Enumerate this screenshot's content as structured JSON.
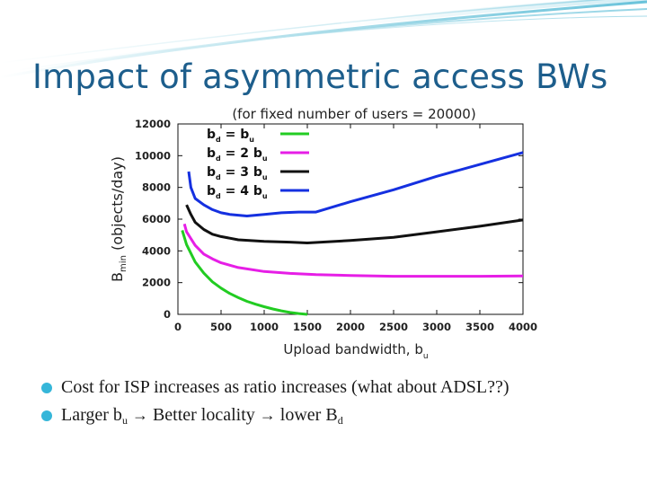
{
  "slide": {
    "title": "Impact of asymmetric access BWs",
    "accent_color": "#1d5e8c",
    "bullet_color": "#35b6d9",
    "bullets": [
      {
        "text": "Cost for ISP increases as ratio increases (what about ADSL??)"
      },
      {
        "parts": [
          "Larger b",
          "u",
          " ",
          "→",
          " Better locality ",
          "→",
          " lower B",
          "d"
        ]
      }
    ]
  },
  "chart_data": {
    "type": "line",
    "title": "(for fixed number of users = 20000)",
    "xlabel": "Upload bandwidth, b",
    "xlabel_sub": "u",
    "ylabel": "B",
    "ylabel_sub": "min",
    "ylabel_rest": " (objects/day)",
    "xlim": [
      0,
      4000
    ],
    "ylim": [
      0,
      12000
    ],
    "xticks": [
      0,
      500,
      1000,
      1500,
      2000,
      2500,
      3000,
      3500,
      4000
    ],
    "yticks": [
      0,
      2000,
      4000,
      6000,
      8000,
      10000,
      12000
    ],
    "legend_position": "top-left",
    "series": [
      {
        "name": "b_d = b_u",
        "legend": [
          "b",
          "d",
          " = b",
          "u"
        ],
        "color": "#22cc22",
        "x": [
          50,
          100,
          200,
          300,
          400,
          500,
          600,
          700,
          800,
          900,
          1000,
          1100,
          1200,
          1300,
          1400,
          1500
        ],
        "y": [
          5300,
          4400,
          3300,
          2600,
          2050,
          1650,
          1320,
          1050,
          820,
          640,
          480,
          340,
          220,
          120,
          50,
          0
        ]
      },
      {
        "name": "b_d = 2 b_u",
        "legend": [
          "b",
          "d",
          " = 2 b",
          "u"
        ],
        "color": "#e61ee6",
        "x": [
          75,
          100,
          200,
          300,
          400,
          500,
          700,
          1000,
          1300,
          1600,
          2000,
          2500,
          3000,
          3500,
          4000
        ],
        "y": [
          5700,
          5200,
          4350,
          3800,
          3500,
          3250,
          2950,
          2700,
          2580,
          2500,
          2450,
          2400,
          2400,
          2400,
          2420
        ]
      },
      {
        "name": "b_d = 3 b_u",
        "legend": [
          "b",
          "d",
          " = 3 b",
          "u"
        ],
        "color": "#111111",
        "x": [
          100,
          150,
          200,
          300,
          400,
          500,
          700,
          1000,
          1300,
          1500,
          2000,
          2500,
          3000,
          3500,
          4000
        ],
        "y": [
          6900,
          6300,
          5800,
          5350,
          5050,
          4900,
          4700,
          4600,
          4550,
          4500,
          4650,
          4850,
          5200,
          5550,
          5950
        ]
      },
      {
        "name": "b_d = 4 b_u",
        "legend": [
          "b",
          "d",
          " = 4 b",
          "u"
        ],
        "color": "#1530e0",
        "x": [
          125,
          150,
          200,
          300,
          400,
          500,
          600,
          700,
          800,
          1000,
          1200,
          1400,
          1600,
          2000,
          2500,
          3000,
          3500,
          4000
        ],
        "y": [
          9000,
          8000,
          7300,
          6900,
          6600,
          6400,
          6300,
          6250,
          6200,
          6300,
          6400,
          6450,
          6450,
          7100,
          7850,
          8700,
          9450,
          10200
        ]
      }
    ]
  }
}
